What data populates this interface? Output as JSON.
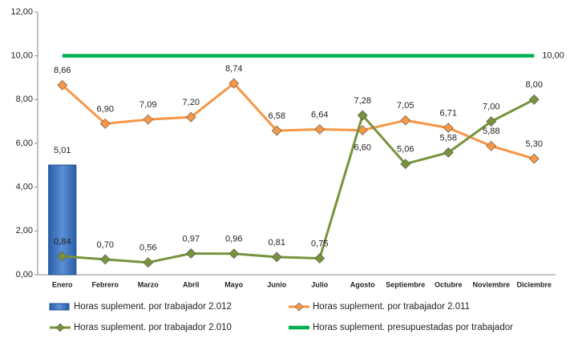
{
  "chart_data": {
    "type": "bar-line",
    "categories": [
      "Enero",
      "Febrero",
      "Marzo",
      "Abril",
      "Mayo",
      "Junio",
      "Julio",
      "Agosto",
      "Septiembre",
      "Octubre",
      "Noviembre",
      "Diciembre"
    ],
    "ylim": [
      0,
      12
    ],
    "yticks": [
      {
        "value": 0,
        "label": "0,00"
      },
      {
        "value": 2,
        "label": "2,00"
      },
      {
        "value": 4,
        "label": "4,00"
      },
      {
        "value": 6,
        "label": "6,00"
      },
      {
        "value": 8,
        "label": "8,00"
      },
      {
        "value": 10,
        "label": "10,00"
      },
      {
        "value": 12,
        "label": "12,00"
      }
    ],
    "grid": false,
    "legend": "bottom",
    "series": [
      {
        "name": "Horas suplement. por trabajador 2.012",
        "kind": "bar",
        "color": "#4f81bd",
        "label_color": "#2e6db4",
        "values": [
          5.01,
          null,
          null,
          null,
          null,
          null,
          null,
          null,
          null,
          null,
          null,
          null
        ],
        "value_labels": [
          "5,01",
          null,
          null,
          null,
          null,
          null,
          null,
          null,
          null,
          null,
          null,
          null
        ]
      },
      {
        "name": "Horas suplement. por trabajador 2.011",
        "kind": "line",
        "color": "#f79646",
        "label_color": "#222222",
        "values": [
          8.66,
          6.9,
          7.09,
          7.2,
          8.74,
          6.58,
          6.64,
          6.6,
          7.05,
          6.71,
          5.88,
          5.3
        ],
        "value_labels": [
          "8,66",
          "6,90",
          "7,09",
          "7,20",
          "8,74",
          "6,58",
          "6,64",
          "6,60",
          "7,05",
          "6,71",
          "5,88",
          "5,30"
        ]
      },
      {
        "name": "Horas suplement. por trabajador 2.010",
        "kind": "line",
        "color": "#77933c",
        "label_color": "#222222",
        "values": [
          0.84,
          0.7,
          0.56,
          0.97,
          0.96,
          0.81,
          0.75,
          7.28,
          5.06,
          5.58,
          7.0,
          8.0
        ],
        "value_labels": [
          "0,84",
          "0,70",
          "0,56",
          "0,97",
          "0,96",
          "0,81",
          "0,75",
          "7,28",
          "5,06",
          "5,58",
          "7,00",
          "8,00"
        ]
      },
      {
        "name": "Horas suplement. presupuestadas por trabajador",
        "kind": "thick-line",
        "color": "#00b050",
        "label_color": "#77933c",
        "values": [
          10,
          10,
          10,
          10,
          10,
          10,
          10,
          10,
          10,
          10,
          10,
          10
        ],
        "value_labels": [
          null,
          null,
          null,
          null,
          null,
          null,
          null,
          null,
          null,
          null,
          null,
          "10,00"
        ]
      }
    ]
  }
}
